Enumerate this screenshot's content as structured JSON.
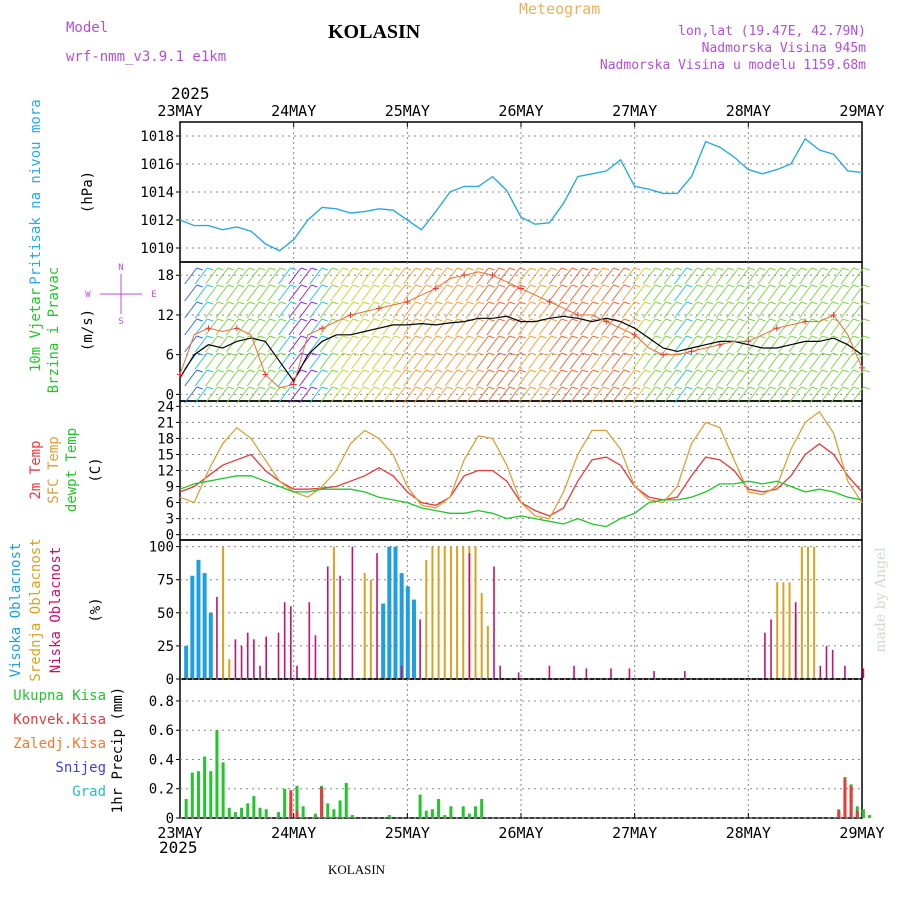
{
  "header": {
    "model_label": "Model",
    "model_name": "wrf-nmm_v3.9.1 e1km",
    "station": "KOLASIN",
    "meteogram_label": "Meteogram",
    "coords": "lon,lat (19.47E, 42.79N)",
    "altitude": "Nadmorska Visina 945m",
    "model_altitude": "Nadmorska Visina u modelu 1159.68m",
    "year_top": "2025",
    "year_bottom": "2025",
    "footer": "KOLASIN",
    "credit": "made by Angel"
  },
  "colors": {
    "pressure": "#29a9e6",
    "temp2m": "#e8393b",
    "sfc": "#d9a23a",
    "dew": "#22c52b",
    "visoka": "#1f9fe0",
    "srednja": "#d9a21f",
    "niska": "#c7106e",
    "ukupna": "#22c52b",
    "konvek": "#e8393b",
    "zaledj": "#f47a2a",
    "snijeg": "#3b3fe0",
    "grad": "#22c2c2",
    "wind_label": "#22c52b",
    "barbs_n": "#c34ae0"
  },
  "chart_data": [
    {
      "type": "line",
      "panel": "pressure",
      "ylabel_name": "Pritisak na nivou mora",
      "ylabel_unit": "(hPa)",
      "ylim": [
        1009,
        1019
      ],
      "yticks": [
        "1010",
        "1012",
        "1014",
        "1016",
        "1018"
      ],
      "xticks": [
        "23MAY",
        "24MAY",
        "25MAY",
        "26MAY",
        "27MAY",
        "28MAY",
        "29MAY"
      ],
      "x_hours": [
        0,
        3,
        6,
        9,
        12,
        15,
        18,
        21,
        24,
        27,
        30,
        33,
        36,
        39,
        42,
        45,
        48,
        51,
        54,
        57,
        60,
        63,
        66,
        69,
        72,
        75,
        78,
        81,
        84,
        87,
        90,
        93,
        96,
        99,
        102,
        105,
        108,
        111,
        114,
        117,
        120,
        123,
        126,
        129,
        132,
        135,
        138,
        141,
        144
      ],
      "values": [
        1012.0,
        1011.6,
        1011.6,
        1011.3,
        1011.5,
        1011.2,
        1010.3,
        1009.8,
        1010.6,
        1012.0,
        1012.9,
        1012.8,
        1012.5,
        1012.6,
        1012.8,
        1012.7,
        1012.0,
        1011.3,
        1012.6,
        1014.0,
        1014.4,
        1014.4,
        1015.1,
        1014.1,
        1012.2,
        1011.7,
        1011.8,
        1013.2,
        1015.1,
        1015.3,
        1015.5,
        1016.3,
        1014.4,
        1014.2,
        1013.9,
        1013.9,
        1015.1,
        1017.6,
        1017.2,
        1016.5,
        1015.6,
        1015.3,
        1015.6,
        1016.0,
        1017.8,
        1017.0,
        1016.7,
        1015.5,
        1015.4
      ]
    },
    {
      "type": "line",
      "panel": "wind",
      "ylabel_name": "10m Vjetar",
      "ylabel_name2": "Brzina i Pravac",
      "ylabel_unit": "(m/s)",
      "compass": {
        "n": "N",
        "w": "W",
        "e": "E",
        "s": "S"
      },
      "ylim": [
        -1,
        20
      ],
      "yticks": [
        "0",
        "6",
        "12",
        "18"
      ],
      "x_hours": [
        0,
        3,
        6,
        9,
        12,
        15,
        18,
        21,
        24,
        27,
        30,
        33,
        36,
        39,
        42,
        45,
        48,
        51,
        54,
        57,
        60,
        63,
        66,
        69,
        72,
        75,
        78,
        81,
        84,
        87,
        90,
        93,
        96,
        99,
        102,
        105,
        108,
        111,
        114,
        117,
        120,
        123,
        126,
        129,
        132,
        135,
        138,
        141,
        144
      ],
      "speed": [
        2.5,
        6,
        7.5,
        7.0,
        8,
        8.5,
        8,
        5,
        2,
        6,
        8,
        9,
        9,
        9.5,
        10,
        10.5,
        10.5,
        10.7,
        10.5,
        10.8,
        11,
        11.5,
        11.5,
        11.8,
        11,
        11,
        11.5,
        11.8,
        11.5,
        11,
        11.5,
        11,
        10,
        8.5,
        7,
        6.5,
        7,
        7.5,
        8,
        8,
        7.5,
        7,
        7,
        7.5,
        8,
        8,
        8.5,
        7.5,
        6
      ],
      "gust": [
        3,
        9,
        10,
        9.5,
        10,
        9,
        3,
        1,
        1.5,
        9,
        10,
        11,
        12,
        12.5,
        13,
        13.5,
        14,
        15,
        16,
        17.5,
        18,
        18.5,
        18,
        17,
        16,
        15,
        14,
        13,
        12,
        12,
        11,
        10,
        9,
        7,
        6,
        6,
        6.5,
        7,
        7.5,
        8,
        8,
        9,
        10,
        10.5,
        11,
        11,
        12,
        9,
        4
      ]
    },
    {
      "type": "line",
      "panel": "temperature",
      "ylabel_series": [
        "2m Temp",
        "SFC Temp",
        "dewpt Temp"
      ],
      "ylabel_unit": "(C)",
      "ylim": [
        -1,
        25
      ],
      "yticks": [
        "0",
        "3",
        "6",
        "9",
        "12",
        "15",
        "18",
        "21",
        "24"
      ],
      "series": [
        {
          "name": "2m Temp",
          "x_hours": [
            0,
            3,
            6,
            9,
            12,
            15,
            18,
            21,
            24,
            27,
            30,
            33,
            36,
            39,
            42,
            45,
            48,
            51,
            54,
            57,
            60,
            63,
            66,
            69,
            72,
            75,
            78,
            81,
            84,
            87,
            90,
            93,
            96,
            99,
            102,
            105,
            108,
            111,
            114,
            117,
            120,
            123,
            126,
            129,
            132,
            135,
            138,
            141,
            144
          ],
          "values": [
            8,
            9,
            11,
            13,
            14,
            15,
            12,
            10,
            8.5,
            8.5,
            8.7,
            9,
            10,
            11,
            12.5,
            11,
            8,
            6,
            5.5,
            7,
            11,
            12,
            12,
            10,
            6,
            4.5,
            3.5,
            5,
            10,
            14,
            14.5,
            13,
            9,
            7,
            6.5,
            7,
            11,
            14.5,
            14,
            12,
            8.5,
            8,
            8.5,
            11,
            15,
            17,
            15,
            11,
            8
          ]
        },
        {
          "name": "SFC Temp",
          "x_hours": [
            0,
            3,
            6,
            9,
            12,
            15,
            18,
            21,
            24,
            27,
            30,
            33,
            36,
            39,
            42,
            45,
            48,
            51,
            54,
            57,
            60,
            63,
            66,
            69,
            72,
            75,
            78,
            81,
            84,
            87,
            90,
            93,
            96,
            99,
            102,
            105,
            108,
            111,
            114,
            117,
            120,
            123,
            126,
            129,
            132,
            135,
            138,
            141,
            144
          ],
          "values": [
            7,
            6,
            12,
            17,
            20,
            18,
            14,
            10,
            8,
            7,
            9,
            12,
            17,
            19.5,
            18,
            15,
            9,
            5.5,
            5,
            7,
            14,
            18.5,
            18,
            13,
            6,
            3.5,
            3,
            8,
            15,
            19.5,
            19.5,
            16,
            9,
            6.5,
            6,
            9,
            17,
            21,
            20,
            14,
            8,
            7.5,
            9,
            16,
            21,
            23,
            19,
            10,
            6
          ]
        },
        {
          "name": "dewpt Temp",
          "x_hours": [
            0,
            3,
            6,
            9,
            12,
            15,
            18,
            21,
            24,
            27,
            30,
            33,
            36,
            39,
            42,
            45,
            48,
            51,
            54,
            57,
            60,
            63,
            66,
            69,
            72,
            75,
            78,
            81,
            84,
            87,
            90,
            93,
            96,
            99,
            102,
            105,
            108,
            111,
            114,
            117,
            120,
            123,
            126,
            129,
            132,
            135,
            138,
            141,
            144
          ],
          "values": [
            8.5,
            9.5,
            10,
            10.5,
            11,
            11,
            10,
            9,
            8,
            8,
            8.5,
            8.5,
            8.5,
            8,
            7,
            6.5,
            6,
            5,
            4.5,
            4,
            4,
            4.5,
            4,
            3,
            3.5,
            3,
            2.5,
            2,
            3,
            2,
            1.5,
            3,
            4,
            6,
            6.5,
            6.5,
            7,
            8,
            9.5,
            9.5,
            10,
            9.5,
            10,
            9,
            8,
            8.5,
            8,
            7,
            6.5
          ]
        }
      ]
    },
    {
      "type": "bar",
      "panel": "clouds",
      "ylabel_series": [
        "Visoka Oblacnost",
        "Srednja Oblacnost",
        "Niska Oblacnost"
      ],
      "ylabel_unit": "(%)",
      "ylim": [
        0,
        105
      ],
      "yticks": [
        "0",
        "25",
        "50",
        "75",
        "100"
      ],
      "series": [
        {
          "name": "Visoka Oblacnost",
          "bars": [
            [
              1,
              25
            ],
            [
              2,
              78
            ],
            [
              3,
              90
            ],
            [
              4,
              80
            ],
            [
              5,
              50
            ],
            [
              33,
              57
            ],
            [
              34,
              100
            ],
            [
              35,
              100
            ],
            [
              36,
              80
            ],
            [
              37,
              70
            ],
            [
              38,
              60
            ]
          ]
        },
        {
          "name": "Srednja Oblacnost",
          "bars": [
            [
              7,
              100
            ],
            [
              8,
              15
            ],
            [
              25,
              100
            ],
            [
              30,
              80
            ],
            [
              31,
              75
            ],
            [
              40,
              90
            ],
            [
              41,
              100
            ],
            [
              42,
              100
            ],
            [
              43,
              100
            ],
            [
              44,
              100
            ],
            [
              45,
              100
            ],
            [
              46,
              100
            ],
            [
              47,
              100
            ],
            [
              48,
              100
            ],
            [
              49,
              65
            ],
            [
              50,
              40
            ],
            [
              97,
              73
            ],
            [
              98,
              73
            ],
            [
              99,
              73
            ],
            [
              100,
              50
            ],
            [
              101,
              100
            ],
            [
              102,
              100
            ],
            [
              103,
              100
            ]
          ]
        },
        {
          "name": "Niska Oblacnost",
          "bars": [
            [
              6,
              62
            ],
            [
              9,
              30
            ],
            [
              10,
              25
            ],
            [
              11,
              35
            ],
            [
              12,
              30
            ],
            [
              13,
              10
            ],
            [
              14,
              32
            ],
            [
              16,
              35
            ],
            [
              17,
              58
            ],
            [
              18,
              55
            ],
            [
              19,
              10
            ],
            [
              21,
              58
            ],
            [
              22,
              33
            ],
            [
              24,
              85
            ],
            [
              26,
              78
            ],
            [
              28,
              100
            ],
            [
              32,
              95
            ],
            [
              36,
              10
            ],
            [
              39,
              45
            ],
            [
              47,
              95
            ],
            [
              51,
              85
            ],
            [
              52,
              10
            ],
            [
              55,
              5
            ],
            [
              60,
              10
            ],
            [
              64,
              10
            ],
            [
              66,
              8
            ],
            [
              70,
              8
            ],
            [
              73,
              8
            ],
            [
              77,
              6
            ],
            [
              82,
              6
            ],
            [
              95,
              35
            ],
            [
              96,
              45
            ],
            [
              100,
              58
            ],
            [
              104,
              10
            ],
            [
              105,
              25
            ],
            [
              106,
              22
            ],
            [
              108,
              10
            ],
            [
              111,
              8
            ]
          ]
        }
      ]
    },
    {
      "type": "bar",
      "panel": "precip",
      "ylabel": "1hr Precip (mm)",
      "ylim": [
        0,
        0.95
      ],
      "yticks": [
        "0",
        "0.2",
        "0.4",
        "0.6",
        "0.8"
      ],
      "legend": [
        "Ukupna Kisa",
        "Konvek.Kisa",
        "Zaledj.Kisa",
        "Snijeg",
        "Grad"
      ],
      "series": [
        {
          "name": "Ukupna Kisa",
          "bars": [
            [
              1,
              0.13
            ],
            [
              2,
              0.31
            ],
            [
              3,
              0.32
            ],
            [
              4,
              0.42
            ],
            [
              5,
              0.32
            ],
            [
              6,
              0.6
            ],
            [
              7,
              0.38
            ],
            [
              8,
              0.07
            ],
            [
              9,
              0.04
            ],
            [
              10,
              0.07
            ],
            [
              11,
              0.1
            ],
            [
              12,
              0.15
            ],
            [
              13,
              0.07
            ],
            [
              14,
              0.06
            ],
            [
              16,
              0.04
            ],
            [
              17,
              0.2
            ],
            [
              18,
              0.1
            ],
            [
              19,
              0.22
            ],
            [
              20,
              0.08
            ],
            [
              22,
              0.03
            ],
            [
              23,
              0.22
            ],
            [
              24,
              0.1
            ],
            [
              25,
              0.06
            ],
            [
              26,
              0.12
            ],
            [
              27,
              0.24
            ],
            [
              28,
              0.02
            ],
            [
              34,
              0.02
            ],
            [
              39,
              0.16
            ],
            [
              40,
              0.05
            ],
            [
              41,
              0.06
            ],
            [
              42,
              0.13
            ],
            [
              43,
              0.02
            ],
            [
              44,
              0.08
            ],
            [
              46,
              0.08
            ],
            [
              47,
              0.03
            ],
            [
              48,
              0.08
            ],
            [
              49,
              0.13
            ],
            [
              107,
              0.06
            ],
            [
              108,
              0.28
            ],
            [
              109,
              0.23
            ],
            [
              110,
              0.08
            ],
            [
              111,
              0.06
            ],
            [
              112,
              0.02
            ]
          ]
        },
        {
          "name": "Konvek.Kisa",
          "bars": [
            [
              18,
              0.19
            ],
            [
              19,
              0.05
            ],
            [
              23,
              0.21
            ],
            [
              107,
              0.05
            ],
            [
              108,
              0.27
            ],
            [
              109,
              0.22
            ],
            [
              110,
              0.05
            ]
          ]
        }
      ]
    }
  ]
}
